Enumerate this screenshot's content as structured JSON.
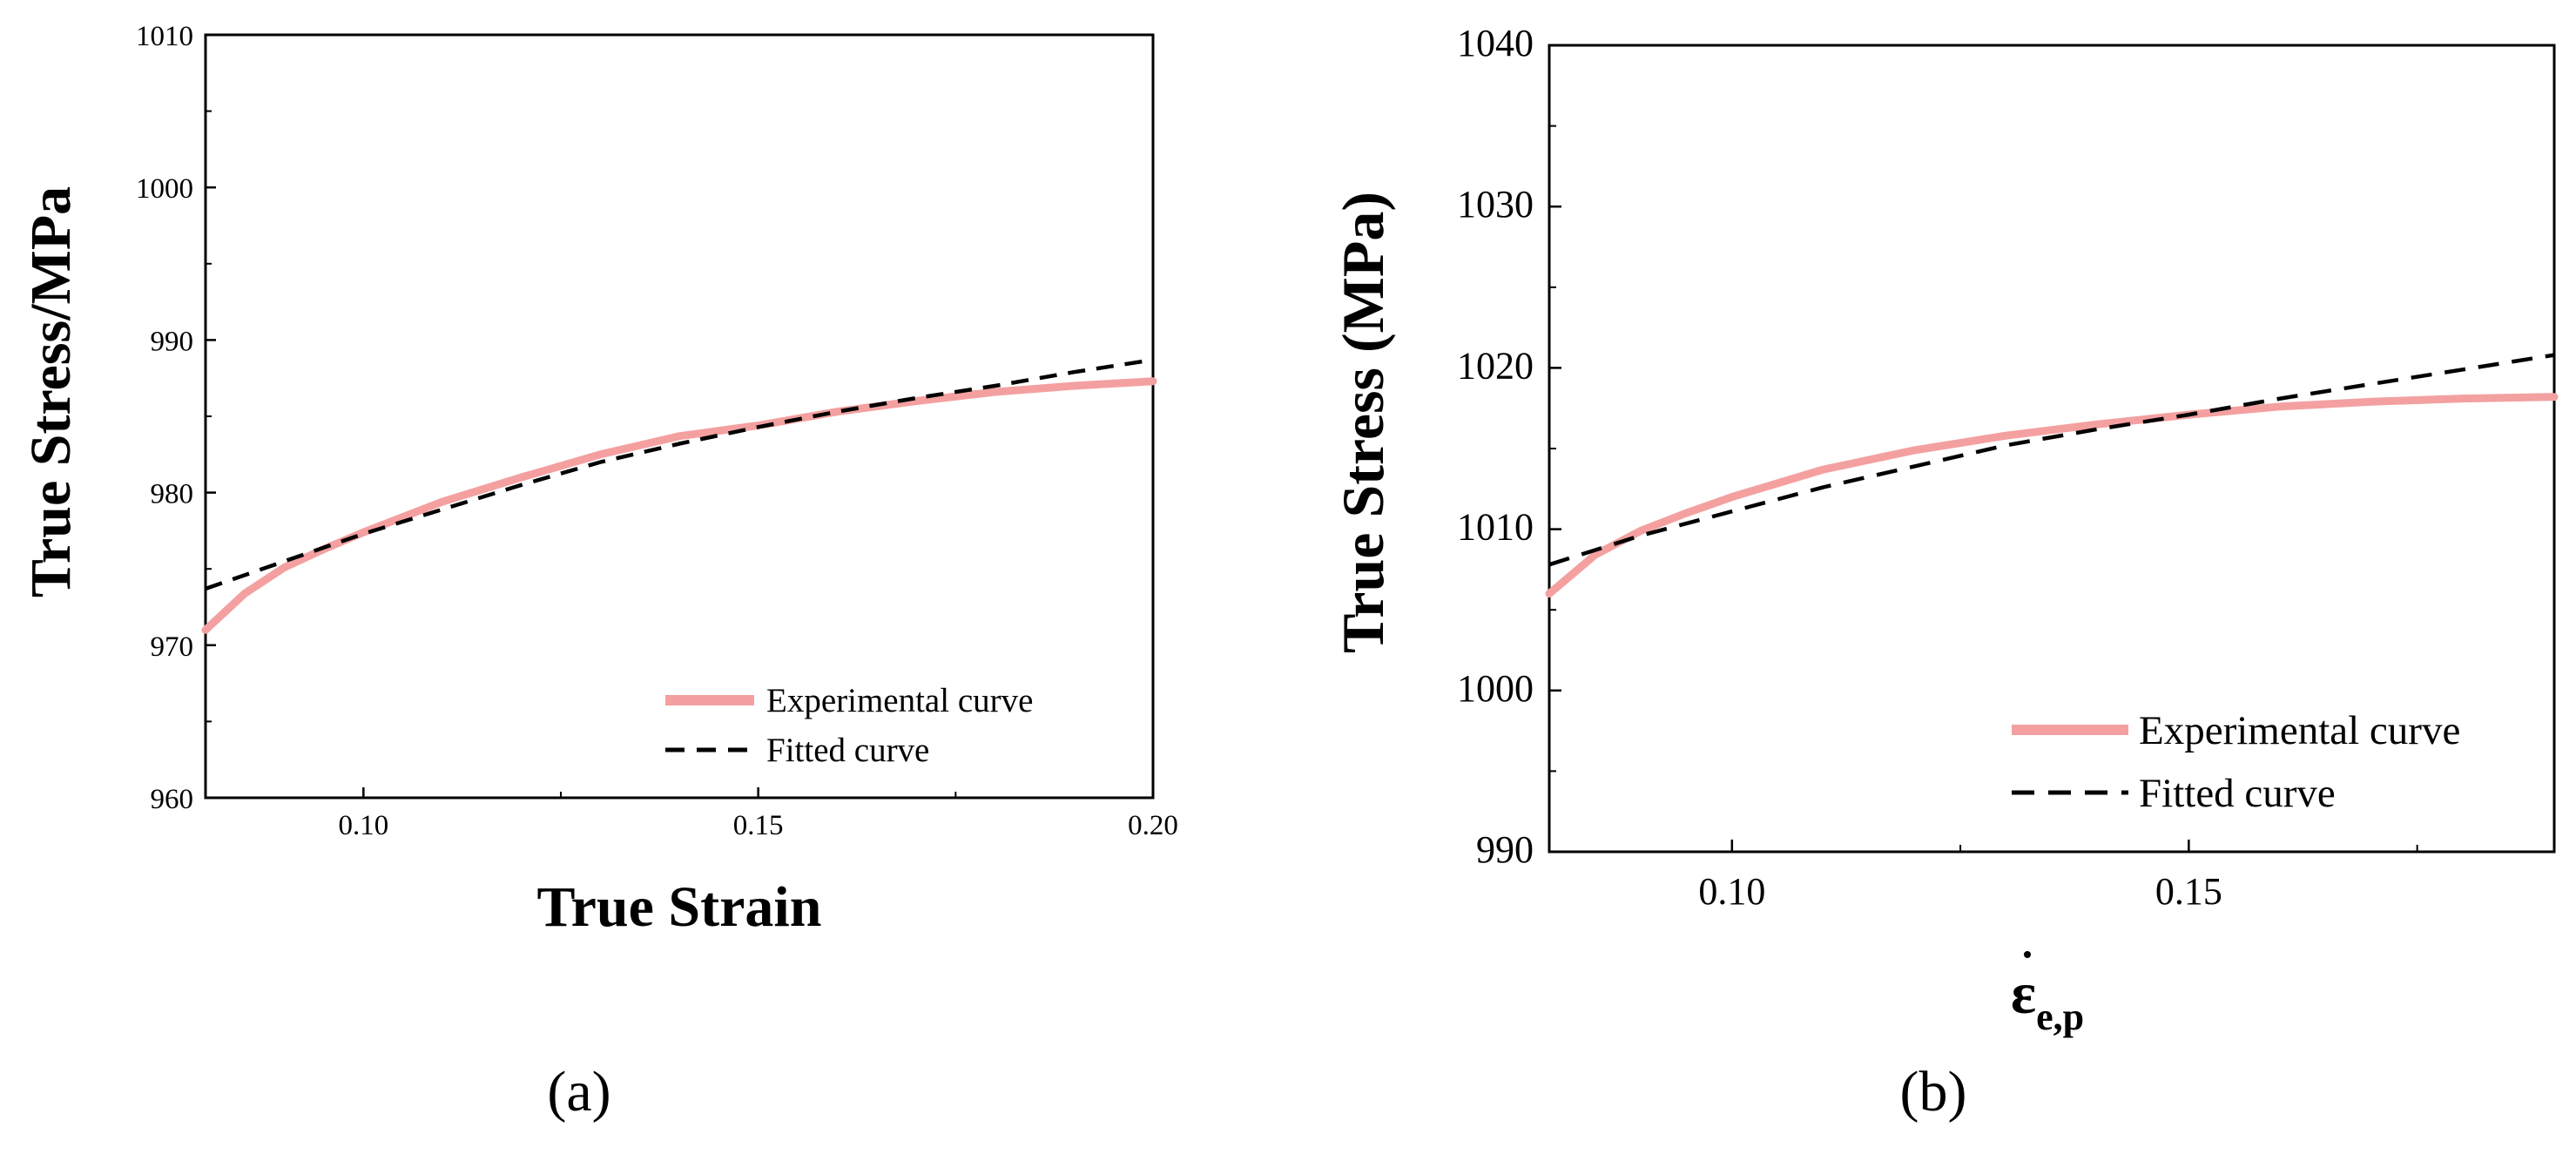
{
  "chart_data": [
    {
      "type": "line",
      "panel_label": "(a)",
      "xlabel": "True Strain",
      "ylabel": "True Stress/MPa",
      "xlim": [
        0.08,
        0.2
      ],
      "ylim": [
        960,
        1010
      ],
      "x_ticks": [
        0.1,
        0.15,
        0.2
      ],
      "x_tick_labels": [
        "0.10",
        "0.15",
        "0.20"
      ],
      "y_ticks": [
        960,
        970,
        980,
        990,
        1000,
        1010
      ],
      "y_tick_labels": [
        "960",
        "970",
        "980",
        "990",
        "1000",
        "1010"
      ],
      "grid": false,
      "legend_position": "bottom-right",
      "series": [
        {
          "name": "Experimental curve",
          "style": "solid",
          "color": "#f4a0a0",
          "x": [
            0.08,
            0.085,
            0.09,
            0.095,
            0.1,
            0.11,
            0.12,
            0.13,
            0.14,
            0.15,
            0.16,
            0.17,
            0.18,
            0.19,
            0.2
          ],
          "y": [
            971.0,
            973.4,
            975.1,
            976.3,
            977.4,
            979.4,
            981.0,
            982.5,
            983.7,
            984.4,
            985.3,
            986.0,
            986.6,
            987.0,
            987.3
          ]
        },
        {
          "name": "Fitted curve",
          "style": "dashed",
          "color": "#000000",
          "x": [
            0.08,
            0.09,
            0.1,
            0.11,
            0.12,
            0.13,
            0.14,
            0.15,
            0.16,
            0.17,
            0.18,
            0.19,
            0.2
          ],
          "y": [
            973.7,
            975.5,
            977.3,
            978.9,
            980.5,
            982.0,
            983.2,
            984.3,
            985.3,
            986.2,
            987.0,
            987.9,
            988.7
          ]
        }
      ]
    },
    {
      "type": "line",
      "panel_label": "(b)",
      "xlabel": "ε̇e,p",
      "xlabel_symbol": "ε",
      "xlabel_subscript": "e,p",
      "ylabel": "True Stress (MPa)",
      "xlim": [
        0.08,
        0.19
      ],
      "ylim": [
        990,
        1040
      ],
      "x_ticks": [
        0.1,
        0.15
      ],
      "x_tick_labels": [
        "0.10",
        "0.15"
      ],
      "y_ticks": [
        990,
        1000,
        1010,
        1020,
        1030,
        1040
      ],
      "y_tick_labels": [
        "990",
        "1000",
        "1010",
        "1020",
        "1030",
        "1040"
      ],
      "grid": false,
      "legend_position": "bottom-right",
      "series": [
        {
          "name": "Experimental curve",
          "style": "solid",
          "color": "#f4a0a0",
          "x": [
            0.08,
            0.085,
            0.09,
            0.095,
            0.1,
            0.11,
            0.12,
            0.13,
            0.14,
            0.15,
            0.16,
            0.17,
            0.18,
            0.19
          ],
          "y": [
            1006.0,
            1008.4,
            1009.9,
            1011.0,
            1012.0,
            1013.7,
            1014.9,
            1015.8,
            1016.5,
            1017.1,
            1017.6,
            1017.9,
            1018.1,
            1018.2
          ]
        },
        {
          "name": "Fitted curve",
          "style": "dashed",
          "color": "#000000",
          "x": [
            0.08,
            0.09,
            0.1,
            0.11,
            0.12,
            0.13,
            0.14,
            0.15,
            0.16,
            0.17,
            0.18,
            0.19
          ],
          "y": [
            1007.8,
            1009.6,
            1011.1,
            1012.6,
            1013.9,
            1015.2,
            1016.2,
            1017.1,
            1018.1,
            1019.0,
            1019.9,
            1020.8
          ]
        }
      ]
    }
  ]
}
